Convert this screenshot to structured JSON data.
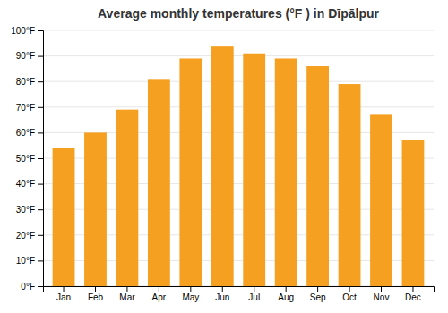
{
  "chart_data": {
    "type": "bar",
    "title": "Average monthly temperatures (°F ) in Dīpālpur",
    "categories": [
      "Jan",
      "Feb",
      "Mar",
      "Apr",
      "May",
      "Jun",
      "Jul",
      "Aug",
      "Sep",
      "Oct",
      "Nov",
      "Dec"
    ],
    "values": [
      54,
      60,
      69,
      81,
      89,
      94,
      91,
      89,
      86,
      79,
      67,
      57
    ],
    "color": "#F5A020",
    "ylim": [
      0,
      100
    ],
    "yticks": [
      {
        "value": 0,
        "label": "0°F"
      },
      {
        "value": 10,
        "label": "10°F"
      },
      {
        "value": 20,
        "label": "20°F"
      },
      {
        "value": 30,
        "label": "30°F"
      },
      {
        "value": 40,
        "label": "40°F"
      },
      {
        "value": 50,
        "label": "50°F"
      },
      {
        "value": 60,
        "label": "60°F"
      },
      {
        "value": 70,
        "label": "70°F"
      },
      {
        "value": 80,
        "label": "80°F"
      },
      {
        "value": 90,
        "label": "90°F"
      },
      {
        "value": 100,
        "label": "100°F"
      }
    ],
    "grid": true
  }
}
